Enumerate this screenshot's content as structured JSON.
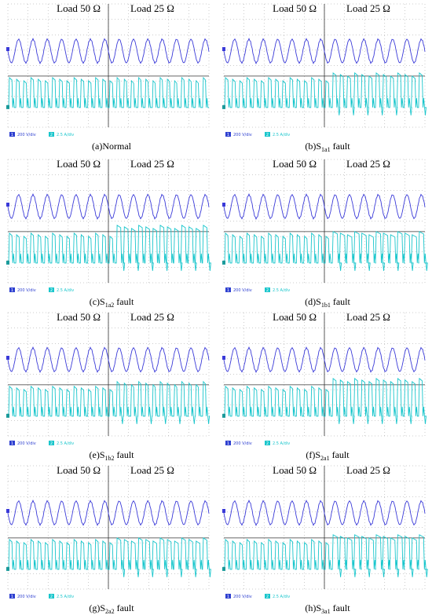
{
  "panels": [
    {
      "load_left": "Load 50 Ω",
      "load_right": "Load 25 Ω",
      "ch1_number": "1",
      "ch1_scale": "200 V/div",
      "ch2_number": "2",
      "ch2_scale": "2.5 A/div",
      "caption": {
        "label": "(a)Normal"
      }
    },
    {
      "load_left": "Load 50 Ω",
      "load_right": "Load 25 Ω",
      "ch1_number": "1",
      "ch1_scale": "200 V/div",
      "ch2_number": "2",
      "ch2_scale": "2.5 A/div",
      "caption": {
        "label": "(b)S",
        "sub": "1a1",
        "suffix": " fault"
      }
    },
    {
      "load_left": "Load 50 Ω",
      "load_right": "Load 25 Ω",
      "ch1_number": "1",
      "ch1_scale": "200 V/div",
      "ch2_number": "2",
      "ch2_scale": "2.5 A/div",
      "caption": {
        "label": "(c)S",
        "sub": "1a2",
        "suffix": " fault"
      }
    },
    {
      "load_left": "Load 50 Ω",
      "load_right": "Load 25 Ω",
      "ch1_number": "1",
      "ch1_scale": "200 V/div",
      "ch2_number": "2",
      "ch2_scale": "2.5 A/div",
      "caption": {
        "label": "(d)S",
        "sub": "1b1",
        "suffix": " fault"
      }
    },
    {
      "load_left": "Load 50 Ω",
      "load_right": "Load 25 Ω",
      "ch1_number": "1",
      "ch1_scale": "200 V/div",
      "ch2_number": "2",
      "ch2_scale": "2.5 A/div",
      "caption": {
        "label": "(e)S",
        "sub": "1b2",
        "suffix": " fault"
      }
    },
    {
      "load_left": "Load 50 Ω",
      "load_right": "Load 25 Ω",
      "ch1_number": "1",
      "ch1_scale": "200 V/div",
      "ch2_number": "2",
      "ch2_scale": "2.5 A/div",
      "caption": {
        "label": "(f)S",
        "sub": "2a1",
        "suffix": " fault"
      }
    },
    {
      "load_left": "Load 50 Ω",
      "load_right": "Load 25 Ω",
      "ch1_number": "1",
      "ch1_scale": "200 V/div",
      "ch2_number": "2",
      "ch2_scale": "2.5 A/div",
      "caption": {
        "label": "(g)S",
        "sub": "2a2",
        "suffix": " fault"
      }
    },
    {
      "load_left": "Load 50 Ω",
      "load_right": "Load 25 Ω",
      "ch1_number": "1",
      "ch1_scale": "200 V/div",
      "ch2_number": "2",
      "ch2_scale": "2.5 A/div",
      "caption": {
        "label": "(h)S",
        "sub": "3a1",
        "suffix": " fault"
      }
    }
  ]
}
